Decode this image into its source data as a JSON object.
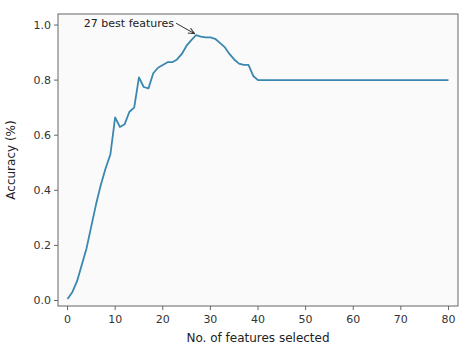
{
  "chart_data": {
    "type": "line",
    "xlabel": "No. of features selected",
    "ylabel": "Accuracy (%)",
    "xlim": [
      -2,
      82
    ],
    "ylim": [
      -0.02,
      1.04
    ],
    "xticks": [
      0,
      10,
      20,
      30,
      40,
      50,
      60,
      70,
      80
    ],
    "yticks": [
      {
        "value": 0.0,
        "label": "0.0"
      },
      0.2,
      0.4,
      0.6,
      0.8,
      {
        "value": 1.0,
        "label": "1.0"
      }
    ],
    "color": "#3a87b0",
    "grid": false,
    "x": [
      0,
      1,
      2,
      3,
      4,
      5,
      6,
      7,
      8,
      9,
      10,
      11,
      12,
      13,
      14,
      15,
      16,
      17,
      18,
      19,
      20,
      21,
      22,
      23,
      24,
      25,
      26,
      27,
      28,
      29,
      30,
      31,
      32,
      33,
      34,
      35,
      36,
      37,
      38,
      39,
      40,
      45,
      50,
      55,
      60,
      65,
      70,
      75,
      80
    ],
    "values": [
      0.005,
      0.03,
      0.07,
      0.13,
      0.19,
      0.27,
      0.35,
      0.42,
      0.48,
      0.53,
      0.665,
      0.63,
      0.64,
      0.685,
      0.7,
      0.81,
      0.775,
      0.77,
      0.825,
      0.845,
      0.855,
      0.865,
      0.865,
      0.875,
      0.895,
      0.925,
      0.945,
      0.963,
      0.958,
      0.955,
      0.955,
      0.95,
      0.935,
      0.92,
      0.895,
      0.875,
      0.86,
      0.855,
      0.855,
      0.815,
      0.8,
      0.8,
      0.8,
      0.8,
      0.8,
      0.8,
      0.8,
      0.8,
      0.8
    ],
    "annotations": [
      {
        "text": "27 best features",
        "x": 27.0,
        "y": 0.963
      }
    ]
  }
}
